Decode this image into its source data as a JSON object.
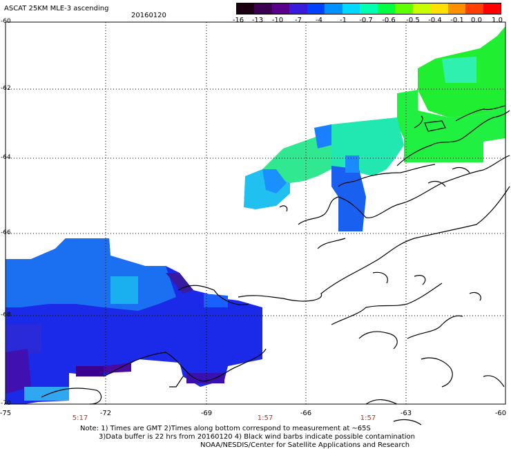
{
  "header": {
    "title": "ASCAT 25KM MLE-3 ascending",
    "date": "20160120"
  },
  "colorbar": {
    "labels": [
      "-16",
      "-13",
      "-10",
      "-7",
      "-4",
      "-1",
      "-0.7",
      "-0.6",
      "-0.5",
      "-0.4",
      "-0.1",
      "0.0",
      "1.0"
    ],
    "colors": [
      "#1a0010",
      "#3c0050",
      "#58008c",
      "#3a1adc",
      "#0040ff",
      "#0090ff",
      "#00d8ff",
      "#00ffb0",
      "#00ff40",
      "#60ff00",
      "#c8ff00",
      "#ffe000",
      "#ff9000",
      "#ff4000",
      "#ff0000"
    ]
  },
  "axes": {
    "lat_labels": [
      "-60",
      "-62",
      "-64",
      "-66",
      "-68",
      "-70"
    ],
    "lon_labels": [
      "-75",
      "-72",
      "-69",
      "-66",
      "-63",
      "-60"
    ]
  },
  "times": [
    "5:17",
    "1:57",
    "1:57"
  ],
  "notes": {
    "line1": "Note: 1) Times are GMT 2)Times along bottom correspond to measurement at ~65S",
    "line2": "3)Data buffer is 22 hrs from 20160120 4) Black wind barbs indicate possible contamination",
    "line3": "NOAA/NESDIS/Center for Satellite Applications and Research"
  },
  "colors": {
    "purple": "#4a10b0",
    "dark_purple": "#3a0090",
    "blue": "#1a1ae0",
    "mid_blue": "#2a5aff",
    "sky": "#1a90ff",
    "cyan": "#20e0f0",
    "aqua": "#30ffd0",
    "green": "#20f040",
    "lime": "#40ff20"
  }
}
